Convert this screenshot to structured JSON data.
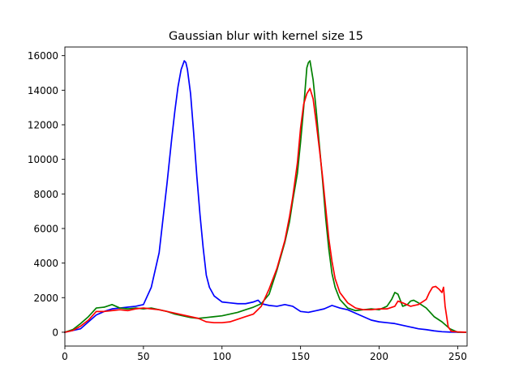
{
  "chart_data": {
    "type": "line",
    "title": "Gaussian blur with kernel size 15",
    "xlabel": "",
    "ylabel": "",
    "xlim": [
      0,
      256
    ],
    "ylim": [
      -800,
      16500
    ],
    "xticks": [
      0,
      50,
      100,
      150,
      200,
      250
    ],
    "yticks": [
      0,
      2000,
      4000,
      6000,
      8000,
      10000,
      12000,
      14000,
      16000
    ],
    "grid": false,
    "legend": null,
    "series": [
      {
        "color": "#0000ff",
        "x": [
          0,
          5,
          10,
          15,
          20,
          25,
          30,
          35,
          40,
          45,
          50,
          55,
          60,
          65,
          68,
          70,
          72,
          74,
          76,
          77,
          78,
          80,
          82,
          84,
          86,
          88,
          90,
          92,
          95,
          100,
          105,
          110,
          115,
          120,
          123,
          125,
          130,
          135,
          140,
          145,
          150,
          155,
          160,
          165,
          170,
          175,
          180,
          185,
          190,
          195,
          200,
          205,
          210,
          215,
          220,
          225,
          230,
          235,
          240,
          245,
          250,
          255
        ],
        "values": [
          0,
          100,
          200,
          600,
          1000,
          1200,
          1350,
          1400,
          1450,
          1500,
          1600,
          2600,
          4600,
          8600,
          11200,
          12800,
          14200,
          15200,
          15700,
          15600,
          15200,
          13800,
          11500,
          9000,
          6800,
          4900,
          3300,
          2600,
          2100,
          1750,
          1700,
          1650,
          1650,
          1750,
          1850,
          1650,
          1550,
          1500,
          1600,
          1500,
          1200,
          1150,
          1250,
          1350,
          1550,
          1400,
          1300,
          1100,
          900,
          700,
          600,
          550,
          500,
          400,
          300,
          200,
          150,
          80,
          30,
          10,
          0,
          0
        ]
      },
      {
        "color": "#008000",
        "x": [
          0,
          5,
          10,
          15,
          20,
          25,
          30,
          35,
          40,
          45,
          50,
          55,
          60,
          65,
          70,
          75,
          80,
          85,
          90,
          95,
          100,
          105,
          110,
          115,
          120,
          125,
          130,
          135,
          140,
          143,
          145,
          148,
          150,
          152,
          154,
          155,
          156,
          158,
          160,
          162,
          164,
          166,
          168,
          170,
          172,
          175,
          180,
          185,
          190,
          195,
          200,
          205,
          208,
          210,
          212,
          215,
          218,
          220,
          222,
          225,
          230,
          235,
          240,
          245,
          250,
          255
        ],
        "values": [
          0,
          150,
          500,
          900,
          1400,
          1450,
          1600,
          1400,
          1350,
          1400,
          1350,
          1400,
          1300,
          1200,
          1050,
          950,
          850,
          800,
          850,
          900,
          950,
          1050,
          1150,
          1300,
          1450,
          1650,
          2200,
          3600,
          5200,
          6400,
          7600,
          9200,
          11000,
          13000,
          15300,
          15600,
          15700,
          14600,
          12800,
          10800,
          8800,
          6600,
          4800,
          3400,
          2600,
          1900,
          1400,
          1250,
          1300,
          1350,
          1300,
          1500,
          1900,
          2300,
          2200,
          1500,
          1600,
          1800,
          1850,
          1700,
          1400,
          900,
          600,
          200,
          0,
          0
        ]
      },
      {
        "color": "#ff0000",
        "x": [
          0,
          5,
          10,
          15,
          20,
          25,
          30,
          35,
          40,
          45,
          50,
          55,
          60,
          65,
          70,
          75,
          80,
          85,
          90,
          95,
          100,
          105,
          110,
          115,
          120,
          125,
          130,
          135,
          140,
          143,
          145,
          148,
          150,
          152,
          154,
          156,
          158,
          160,
          162,
          164,
          166,
          168,
          170,
          172,
          175,
          180,
          185,
          190,
          195,
          200,
          205,
          210,
          212,
          215,
          220,
          225,
          230,
          232,
          234,
          236,
          238,
          240,
          241,
          242,
          244,
          246,
          250,
          255
        ],
        "values": [
          0,
          100,
          350,
          700,
          1200,
          1200,
          1250,
          1300,
          1250,
          1350,
          1400,
          1350,
          1300,
          1200,
          1100,
          1000,
          900,
          800,
          600,
          550,
          550,
          600,
          750,
          900,
          1050,
          1500,
          2500,
          3700,
          5300,
          6700,
          7800,
          9800,
          11800,
          13200,
          13800,
          14100,
          13500,
          12100,
          10600,
          9000,
          7200,
          5400,
          4100,
          3100,
          2300,
          1700,
          1400,
          1300,
          1300,
          1350,
          1350,
          1500,
          1800,
          1700,
          1500,
          1600,
          1900,
          2300,
          2600,
          2650,
          2500,
          2300,
          2600,
          1500,
          300,
          50,
          20,
          0
        ]
      }
    ]
  }
}
